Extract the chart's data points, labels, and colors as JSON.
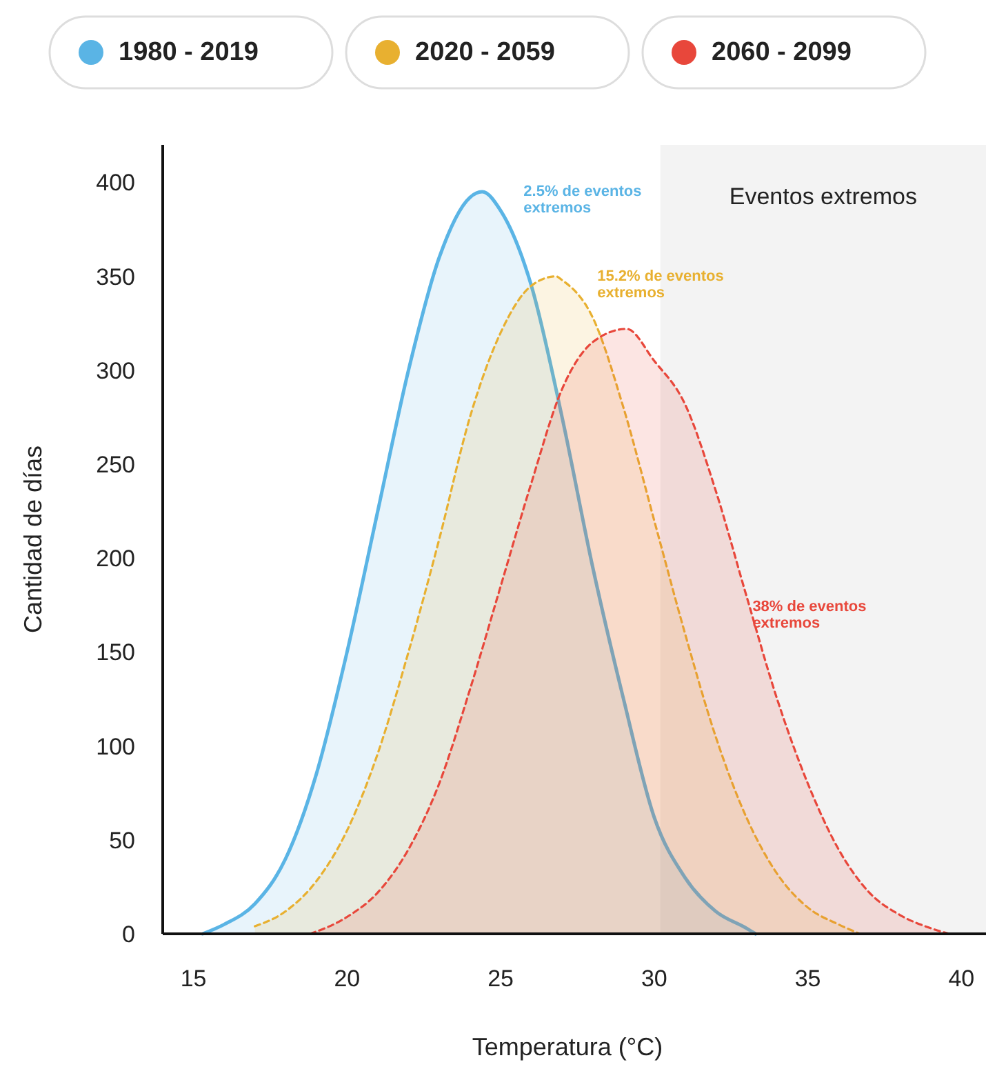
{
  "chart_data": {
    "type": "area",
    "xlabel": "Temperatura (°C)",
    "ylabel": "Cantidad de días",
    "xlim": [
      14,
      40.8
    ],
    "ylim": [
      0,
      420
    ],
    "xticks": [
      15,
      20,
      25,
      30,
      35,
      40
    ],
    "yticks": [
      0,
      50,
      100,
      150,
      200,
      250,
      300,
      350,
      400
    ],
    "grid": false,
    "legend": "top",
    "marker": "none",
    "series": [
      {
        "name": "1980 - 2019",
        "color": "#5ab4e5",
        "line_style": "solid",
        "x": [
          15.3,
          16,
          17,
          18,
          19,
          20,
          21,
          22,
          23,
          24,
          24.4,
          25,
          26,
          27,
          28,
          29,
          30,
          31,
          32,
          33,
          33.3
        ],
        "values": [
          0,
          5,
          16,
          40,
          85,
          150,
          225,
          300,
          360,
          392,
          395,
          385,
          345,
          275,
          195,
          125,
          62,
          30,
          12,
          3,
          0
        ]
      },
      {
        "name": "2020 - 2059",
        "color": "#e8b030",
        "line_style": "dashed",
        "x": [
          17,
          18,
          19,
          20,
          21,
          22,
          23,
          24,
          25,
          26,
          26.8,
          27,
          28,
          29,
          30,
          31,
          32,
          33,
          34,
          35,
          36,
          36.7
        ],
        "values": [
          4,
          12,
          28,
          55,
          96,
          150,
          210,
          275,
          320,
          345,
          350,
          348,
          328,
          280,
          220,
          160,
          105,
          62,
          32,
          14,
          5,
          0
        ]
      },
      {
        "name": "2060 - 2099",
        "color": "#e8473b",
        "line_style": "dashed",
        "x": [
          18.8,
          20,
          21,
          22,
          23,
          24,
          25,
          26,
          27,
          28,
          29.1,
          30,
          31,
          32,
          33,
          34,
          35,
          36,
          37,
          38,
          39,
          39.6
        ],
        "values": [
          0,
          9,
          22,
          45,
          80,
          130,
          185,
          240,
          290,
          315,
          322,
          305,
          282,
          236,
          180,
          125,
          80,
          45,
          22,
          10,
          3,
          0
        ]
      }
    ],
    "bands": [
      {
        "axis": "x",
        "from": 30.2,
        "to": 40.8,
        "label": "Eventos extremos",
        "color": "#f3f3f3"
      }
    ],
    "annotations": [
      "2.5% de eventos extremos",
      "15.2% de eventos extremos",
      {
        "text": "38% de eventos extremos",
        "x": 33.2,
        "y": 172
      }
    ]
  }
}
